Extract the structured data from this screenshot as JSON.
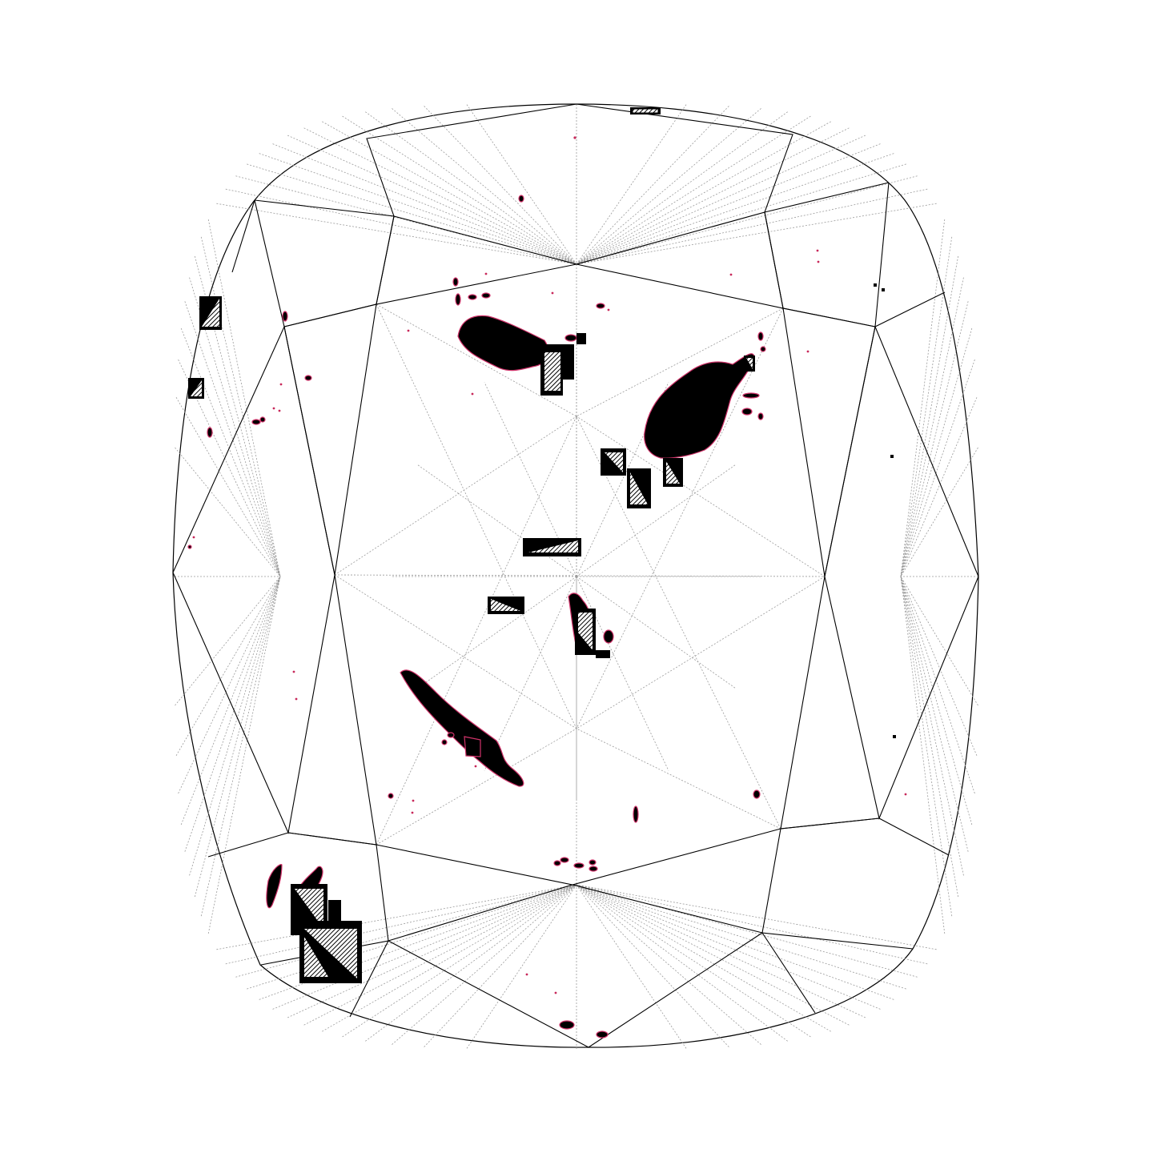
{
  "diagram": {
    "type": "gemstone-clarity-plot",
    "shape": "cushion",
    "colors": {
      "background": "#ffffff",
      "facet_line": "#000000",
      "mesh_line": "#9a9a9a",
      "inclusion_fill": "#000000",
      "inclusion_outline": "#d0336a",
      "pinpoint": "#c8285a"
    },
    "symbols": [
      "crystal-inclusion",
      "feather",
      "pinpoint",
      "indented-natural",
      "needle"
    ]
  }
}
